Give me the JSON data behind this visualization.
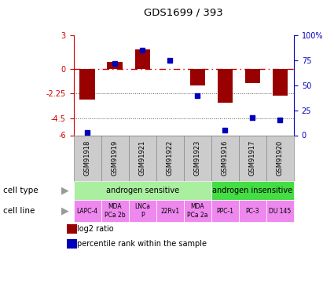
{
  "title": "GDS1699 / 393",
  "samples": [
    "GSM91918",
    "GSM91919",
    "GSM91921",
    "GSM91922",
    "GSM91923",
    "GSM91916",
    "GSM91917",
    "GSM91920"
  ],
  "log2_ratio": [
    -2.8,
    0.6,
    1.7,
    0.0,
    -1.5,
    -3.1,
    -1.3,
    -2.4
  ],
  "percentile_rank": [
    3,
    72,
    85,
    75,
    40,
    5,
    18,
    15
  ],
  "ylim_left": [
    -6,
    3
  ],
  "ylim_right": [
    0,
    100
  ],
  "yticks_left": [
    3,
    0,
    -2.25,
    -4.5,
    -6
  ],
  "yticks_right": [
    100,
    75,
    50,
    25,
    0
  ],
  "ytick_labels_right": [
    "100%",
    "75",
    "50",
    "25",
    "0"
  ],
  "cell_type_labels": [
    {
      "label": "androgen sensitive",
      "start": 0,
      "end": 5,
      "color": "#aaeea0"
    },
    {
      "label": "androgen insensitive",
      "start": 5,
      "end": 8,
      "color": "#44dd44"
    }
  ],
  "cell_line_labels": [
    {
      "label": "LAPC-4",
      "start": 0,
      "end": 1,
      "color": "#ee88ee"
    },
    {
      "label": "MDA\nPCa 2b",
      "start": 1,
      "end": 2,
      "color": "#ee88ee"
    },
    {
      "label": "LNCa\nP",
      "start": 2,
      "end": 3,
      "color": "#ee88ee"
    },
    {
      "label": "22Rv1",
      "start": 3,
      "end": 4,
      "color": "#ee88ee"
    },
    {
      "label": "MDA\nPCa 2a",
      "start": 4,
      "end": 5,
      "color": "#ee88ee"
    },
    {
      "label": "PPC-1",
      "start": 5,
      "end": 6,
      "color": "#ee88ee"
    },
    {
      "label": "PC-3",
      "start": 6,
      "end": 7,
      "color": "#ee88ee"
    },
    {
      "label": "DU 145",
      "start": 7,
      "end": 8,
      "color": "#ee88ee"
    }
  ],
  "bar_color": "#990000",
  "dot_color": "#0000bb",
  "zero_line_color": "#cc0000",
  "hline_color": "#555555",
  "left_axis_color": "#cc0000",
  "right_axis_color": "#0000bb",
  "sample_box_color": "#cccccc",
  "sample_box_edge": "#888888",
  "legend_items": [
    {
      "label": "log2 ratio",
      "color": "#990000"
    },
    {
      "label": "percentile rank within the sample",
      "color": "#0000bb"
    }
  ]
}
